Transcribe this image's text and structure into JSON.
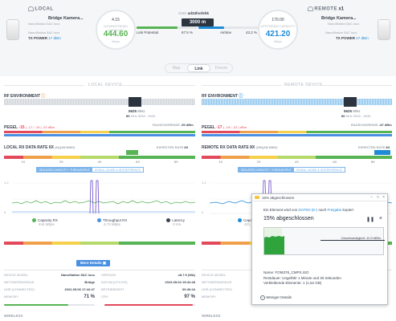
{
  "header": {
    "local_label": "LOCAL",
    "remote_label": "REMOTE",
    "remote_count": "x1",
    "local_name": "Bridge Kamera...",
    "local_model": "NanoStation 5AC loco",
    "local_tx_label": "TX POWER",
    "local_tx_value": "17 dBm",
    "remote_name": "Bridge Kamera...",
    "remote_model": "NanoStation 5AC loco",
    "remote_tx_label": "TX POWER",
    "remote_tx_value": "17 dBm",
    "local_gauge_top": "4.15",
    "local_gauge_sub": "DOWNSTREAM CAPACITY",
    "local_gauge_value": "444.60",
    "local_gauge_unit": "Mbps",
    "remote_gauge_top": "170.00",
    "remote_gauge_sub": "UPSTREAM CAPACITY",
    "remote_gauge_value": "421.20",
    "remote_gauge_unit": "Mbps",
    "ssid_label": "SSID",
    "ssid_value": "ad34fvofehk",
    "distance": "3000 m",
    "link_potential_label": "Link Potential",
    "link_potential_value": "67.5 %",
    "airtime_label": "Airtime",
    "airtime_value": "43.2 %",
    "link_potential_fraction": 0.675,
    "airtime_fraction": 0.432
  },
  "tabs": [
    "Map",
    "Link",
    "Freeze"
  ],
  "local": {
    "section_title": "LOCAL DEVICE",
    "rf_label": "RF ENVIRONMENT",
    "freq": "5625",
    "freq_unit": "MHz",
    "freq_range_prefix": "80",
    "freq_range_mid": "MHz",
    "freq_range": "5555 - 5635",
    "noise_label": "RAUSCHGRENZE",
    "noise_value": "-90 dBm",
    "pegel_label": "PEGEL",
    "pegel_value": "-15",
    "pegel_detail": "( -17 / -19 ) -22 dBm",
    "rx_title": "LOCAL RX DATA RATE",
    "rx_mode": "6X",
    "rx_mode_detail": "(64QAM MIMO)",
    "expected_label": "EXPECTED RATE",
    "expected_value": "8X",
    "rate_ticks": [
      "1X",
      "2X",
      "4X",
      "6X",
      "8X"
    ],
    "toggle_on": "ISOLATED CAPACITY / THROUGHPUT",
    "toggle_off": "SIGNAL, NOISE & INTERFERENCE",
    "y_top": "1.2",
    "y_bot": "0",
    "legend": [
      {
        "label": "Capacity RX",
        "value": "444 Mbps",
        "color": "#57b454"
      },
      {
        "label": "Throughput RX",
        "value": "4.72 Mbps",
        "color": "#4a90e2"
      },
      {
        "label": "Latency",
        "value": "0 ms",
        "color": "#3a4250"
      }
    ],
    "more_details": "More Details",
    "rows": [
      {
        "k": "DEVICE MODEL",
        "v": "NanoStation 5AC loco",
        "k2": "VERSION",
        "v2": "v8.7.9 (WA)"
      },
      {
        "k": "NETZWERKMODUS",
        "v": "Bridge",
        "k2": "DATUM (UTC/CE)",
        "v2": "2023-05-04 15:42:48"
      },
      {
        "k": "UHR (CONNECTED)",
        "v": "2022-05-06 17:42:47",
        "k2": "BETRIEBSZEIT",
        "v2": "00:40:44"
      },
      {
        "k": "MEMORY",
        "v": "71 %",
        "k2": "CPU",
        "v2": "97 %"
      }
    ],
    "memory_fraction": 0.71,
    "cpu_fraction": 0.97,
    "wireless_label": "WIRELESS"
  },
  "remote": {
    "section_title": "REMOTE DEVICE",
    "rf_label": "RF ENVIRONMENT",
    "freq": "5625",
    "freq_unit": "MHz",
    "freq_range_prefix": "80",
    "freq_range_mid": "MHz",
    "freq_range": "5555 - 5635",
    "noise_label": "RAUSCHGRENZE",
    "noise_value": "-87 dBm",
    "pegel_label": "PEGEL",
    "pegel_value": "-17",
    "pegel_detail": "( -19 / -22 ) dBm",
    "rx_title": "REMOTE RX DATA RATE",
    "rx_mode": "8X",
    "rx_mode_detail": "(256QAM MIMO)",
    "expected_label": "EXPECTED RATE",
    "expected_value": "8X",
    "rate_ticks": [
      "1X",
      "2X",
      "4X",
      "6X",
      "8X"
    ],
    "toggle_on": "ISOLATED CAPACITY / THROUGHPUT",
    "toggle_off": "SIGNAL, NOISE & INTERFERENCE",
    "y_top": "1.2",
    "y_bot": "0",
    "legend_cap": "Capacity",
    "legend_cap_value": "421 Mb",
    "rows": [
      {
        "k": "DEVICE MODEL",
        "v": ""
      },
      {
        "k": "NETZWERKMODUS",
        "v": ""
      },
      {
        "k": "UHR (CONNECTED)",
        "v": ""
      },
      {
        "k": "MEMORY",
        "v": ""
      }
    ],
    "wireless_label": "WIRELESS"
  },
  "dialog": {
    "title": "15% abgeschlossen",
    "line_prefix": "Ein Element wird von",
    "line_source": "DATEN (D:)",
    "line_mid": "nach",
    "line_dest": "Freigabe",
    "line_suffix": "kopiert",
    "heading": "15% abgeschlossen",
    "speed": "Geschwindigkeit: 10.9 MB/s",
    "name_label": "Name: FOM378_CMPS.ISO",
    "remaining": "Restdauer: Ungefähr 1 Minute und 30 Sekunden",
    "items": "Verbleibende Elemente: 1 (1,52 GB)",
    "less": "Weniger Details",
    "progress_fraction": 0.15,
    "pause_icon": "pause-icon",
    "close_icon": "close-icon"
  }
}
